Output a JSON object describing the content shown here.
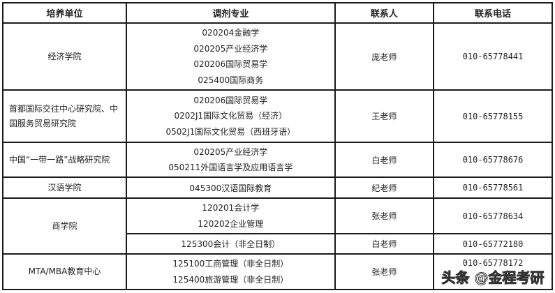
{
  "headers": [
    "培养单位",
    "调剂专业",
    "联系人",
    "联系电话"
  ],
  "rows": [
    {
      "unit": "经济学院",
      "majors": [
        "020204金融学",
        "020205产业经济学",
        "020206国际贸易学",
        "025400国际商务"
      ],
      "contact": "庞老师",
      "phone": "010-65778441"
    },
    {
      "unit": "首都国际交往中心研究院、中国服务贸易研究院",
      "majors": [
        "020206国际贸易学",
        "0202J1国际文化贸易（经济）",
        "0502J1国际文化贸易（西班牙语）"
      ],
      "contact": "王老师",
      "phone": "010-65778155"
    },
    {
      "unit": "中国“一带一路”战略研究院",
      "majors": [
        "020205产业经济学",
        "050211外国语言学及应用语言学"
      ],
      "contact": "白老师",
      "phone": "010-65778676"
    },
    {
      "unit": "汉语学院",
      "majors": [
        "045300汉语国际教育"
      ],
      "contact": "纪老师",
      "phone": "010-65778561"
    },
    {
      "unit": "商学院",
      "majors": [
        "120201会计学",
        "120202企业管理"
      ],
      "contact": "张老师",
      "phone": "010-65778634"
    },
    {
      "majors": [
        "125300会计（非全日制）"
      ],
      "contact": "白老师",
      "phone": "010-65772180"
    },
    {
      "unit": "MTA/MBA教育中心",
      "majors": [
        "125100工商管理（非全日制）",
        "125400旅游管理（非全日制）"
      ],
      "contact": "张老师",
      "phone": "010-65778172"
    }
  ],
  "watermark": "头条 @金程考研"
}
